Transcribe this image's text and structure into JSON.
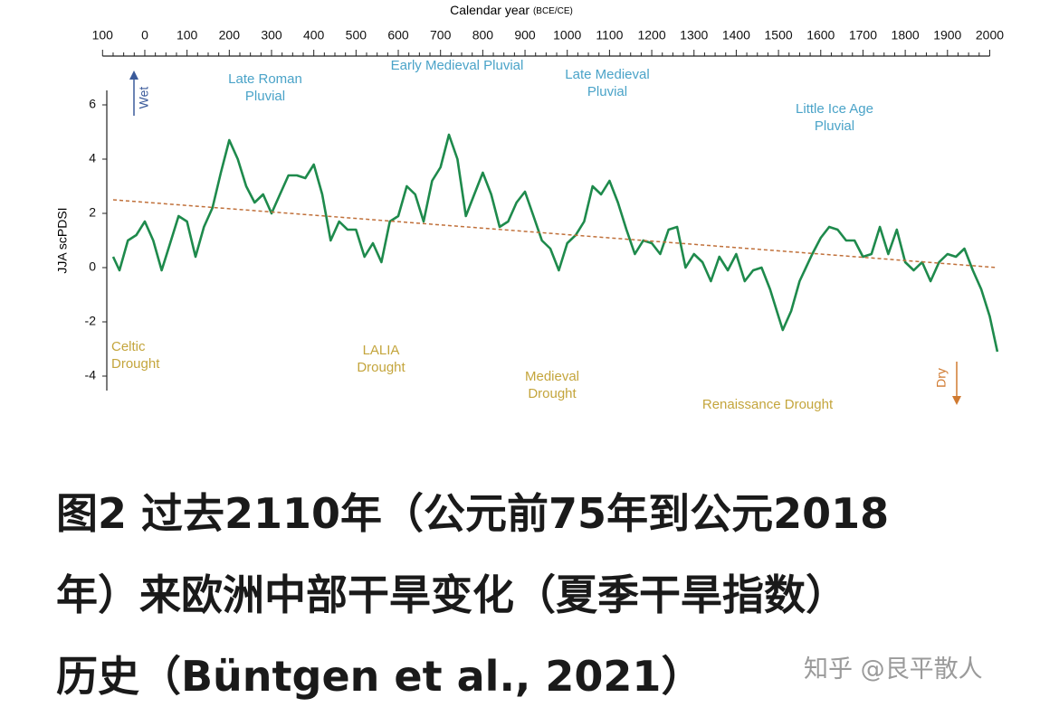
{
  "chart_data": {
    "type": "line",
    "x_label": "Calendar year",
    "x_label_note": "(BCE/CE)",
    "y_label": "JJA scPDSI",
    "xlim": [
      -100,
      2020
    ],
    "ylim": [
      -4.8,
      7.7
    ],
    "xticks": [
      {
        "value": -100,
        "label": "100"
      },
      0,
      100,
      200,
      300,
      400,
      500,
      600,
      700,
      800,
      900,
      1000,
      1100,
      1200,
      1300,
      1400,
      1500,
      1600,
      1700,
      1800,
      1900,
      2000
    ],
    "yticks": [
      -4,
      -2,
      0,
      2,
      4,
      6
    ],
    "series": [
      {
        "color": "#1e8a4c",
        "dash": false,
        "x": [
          -75,
          -60,
          -40,
          -20,
          0,
          20,
          40,
          60,
          80,
          100,
          120,
          140,
          160,
          180,
          200,
          220,
          240,
          260,
          280,
          300,
          320,
          340,
          360,
          380,
          400,
          420,
          440,
          460,
          480,
          500,
          520,
          540,
          560,
          580,
          600,
          620,
          640,
          660,
          680,
          700,
          720,
          740,
          760,
          780,
          800,
          820,
          840,
          860,
          880,
          900,
          920,
          940,
          960,
          980,
          1000,
          1020,
          1040,
          1060,
          1080,
          1100,
          1120,
          1140,
          1160,
          1180,
          1200,
          1220,
          1240,
          1260,
          1280,
          1300,
          1320,
          1340,
          1360,
          1380,
          1400,
          1420,
          1440,
          1460,
          1480,
          1500,
          1510,
          1530,
          1550,
          1580,
          1600,
          1620,
          1640,
          1660,
          1680,
          1700,
          1720,
          1740,
          1760,
          1780,
          1800,
          1820,
          1840,
          1860,
          1880,
          1900,
          1920,
          1940,
          1960,
          1980,
          2000,
          2018
        ],
        "values": [
          0.4,
          -0.1,
          1.0,
          1.2,
          1.7,
          1.0,
          -0.1,
          0.9,
          1.9,
          1.7,
          0.4,
          1.5,
          2.2,
          3.5,
          4.7,
          4.0,
          3.0,
          2.4,
          2.7,
          2.0,
          2.7,
          3.4,
          3.4,
          3.3,
          3.8,
          2.7,
          1.0,
          1.7,
          1.4,
          1.4,
          0.4,
          0.9,
          0.2,
          1.7,
          1.9,
          3.0,
          2.7,
          1.7,
          3.2,
          3.7,
          4.9,
          4.0,
          1.9,
          2.7,
          3.5,
          2.7,
          1.5,
          1.7,
          2.4,
          2.8,
          1.9,
          1.0,
          0.7,
          -0.1,
          0.9,
          1.2,
          1.7,
          3.0,
          2.7,
          3.2,
          2.4,
          1.4,
          0.5,
          1.0,
          0.9,
          0.5,
          1.4,
          1.5,
          0.0,
          0.5,
          0.2,
          -0.5,
          0.4,
          -0.1,
          0.5,
          -0.5,
          -0.1,
          0.0,
          -0.8,
          -1.8,
          -2.3,
          -1.6,
          -0.5,
          0.5,
          1.1,
          1.5,
          1.4,
          1.0,
          1.0,
          0.4,
          0.5,
          1.5,
          0.5,
          1.4,
          0.2,
          -0.1,
          0.2,
          -0.5,
          0.2,
          0.5,
          0.4,
          0.7,
          -0.1,
          -0.8,
          -1.8,
          -3.1
        ]
      },
      {
        "color": "#c0703a",
        "dash": true,
        "x": [
          -75,
          2018
        ],
        "values": [
          2.5,
          0.0
        ]
      }
    ],
    "annotations": [
      {
        "text": [
          "Late Roman",
          "Pluvial"
        ],
        "color": "#4aa3c8"
      },
      {
        "text": [
          "Early Medieval Pluvial"
        ],
        "color": "#4aa3c8"
      },
      {
        "text": [
          "Late Medieval",
          "Pluvial"
        ],
        "color": "#4aa3c8"
      },
      {
        "text": [
          "Little Ice Age",
          "Pluvial"
        ],
        "color": "#4aa3c8"
      },
      {
        "text": [
          "Celtic",
          "Drought"
        ],
        "color": "#c4a53c"
      },
      {
        "text": [
          "LALIA",
          "Drought"
        ],
        "color": "#c4a53c"
      },
      {
        "text": [
          "Medieval",
          "Drought"
        ],
        "color": "#c4a53c"
      },
      {
        "text": [
          "Renaissance Drought"
        ],
        "color": "#c4a53c"
      }
    ],
    "wet_label": "Wet",
    "wet_color": "#3a5a9a",
    "dry_label": "Dry",
    "dry_color": "#d07a30"
  },
  "caption": [
    "图2 过去2110年（公元前75年到公元2018",
    "年）来欧洲中部干旱变化（夏季干旱指数）",
    "历史（Büntgen et al., 2021）"
  ],
  "watermark": "知乎 @艮平散人"
}
